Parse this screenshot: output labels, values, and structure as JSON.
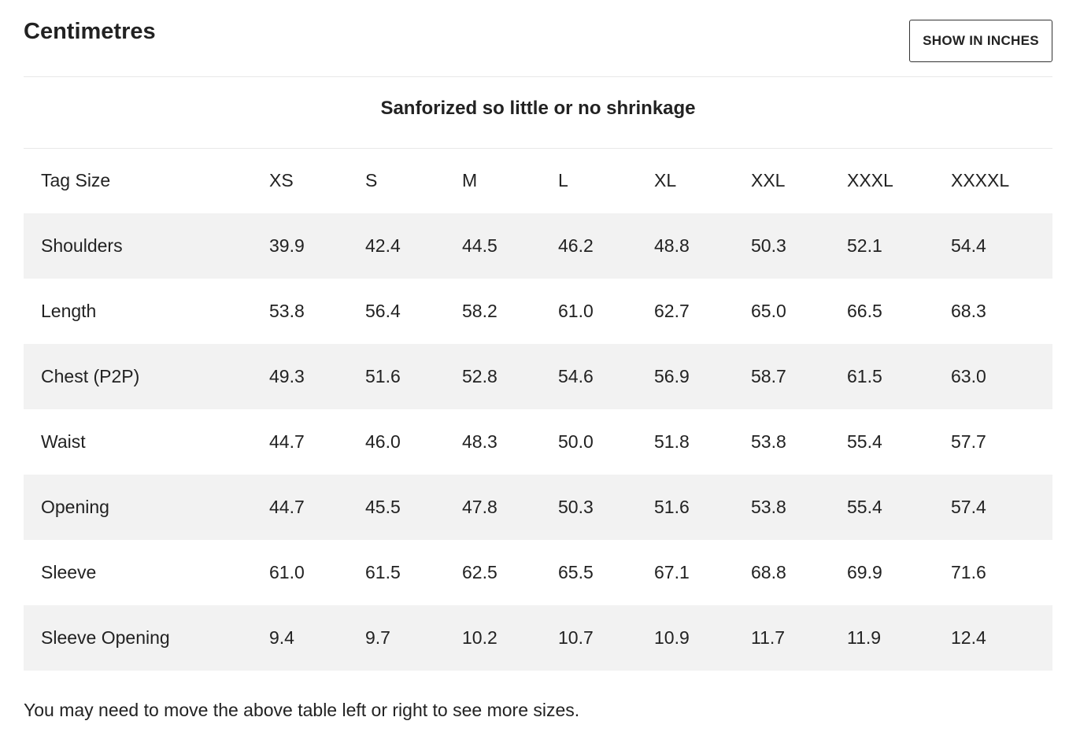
{
  "header": {
    "title": "Centimetres",
    "button": "SHOW IN INCHES"
  },
  "table": {
    "caption": "Sanforized so little or no shrinkage",
    "columns": [
      "Tag Size",
      "XS",
      "S",
      "M",
      "L",
      "XL",
      "XXL",
      "XXXL",
      "XXXXL"
    ],
    "rows": [
      [
        "Shoulders",
        "39.9",
        "42.4",
        "44.5",
        "46.2",
        "48.8",
        "50.3",
        "52.1",
        "54.4"
      ],
      [
        "Length",
        "53.8",
        "56.4",
        "58.2",
        "61.0",
        "62.7",
        "65.0",
        "66.5",
        "68.3"
      ],
      [
        "Chest (P2P)",
        "49.3",
        "51.6",
        "52.8",
        "54.6",
        "56.9",
        "58.7",
        "61.5",
        "63.0"
      ],
      [
        "Waist",
        "44.7",
        "46.0",
        "48.3",
        "50.0",
        "51.8",
        "53.8",
        "55.4",
        "57.7"
      ],
      [
        "Opening",
        "44.7",
        "45.5",
        "47.8",
        "50.3",
        "51.6",
        "53.8",
        "55.4",
        "57.4"
      ],
      [
        "Sleeve",
        "61.0",
        "61.5",
        "62.5",
        "65.5",
        "67.1",
        "68.8",
        "69.9",
        "71.6"
      ],
      [
        "Sleeve Opening",
        "9.4",
        "9.7",
        "10.2",
        "10.7",
        "10.9",
        "11.7",
        "11.9",
        "12.4"
      ]
    ]
  },
  "footer": {
    "note": "You may need to move the above table left or right to see more sizes."
  }
}
